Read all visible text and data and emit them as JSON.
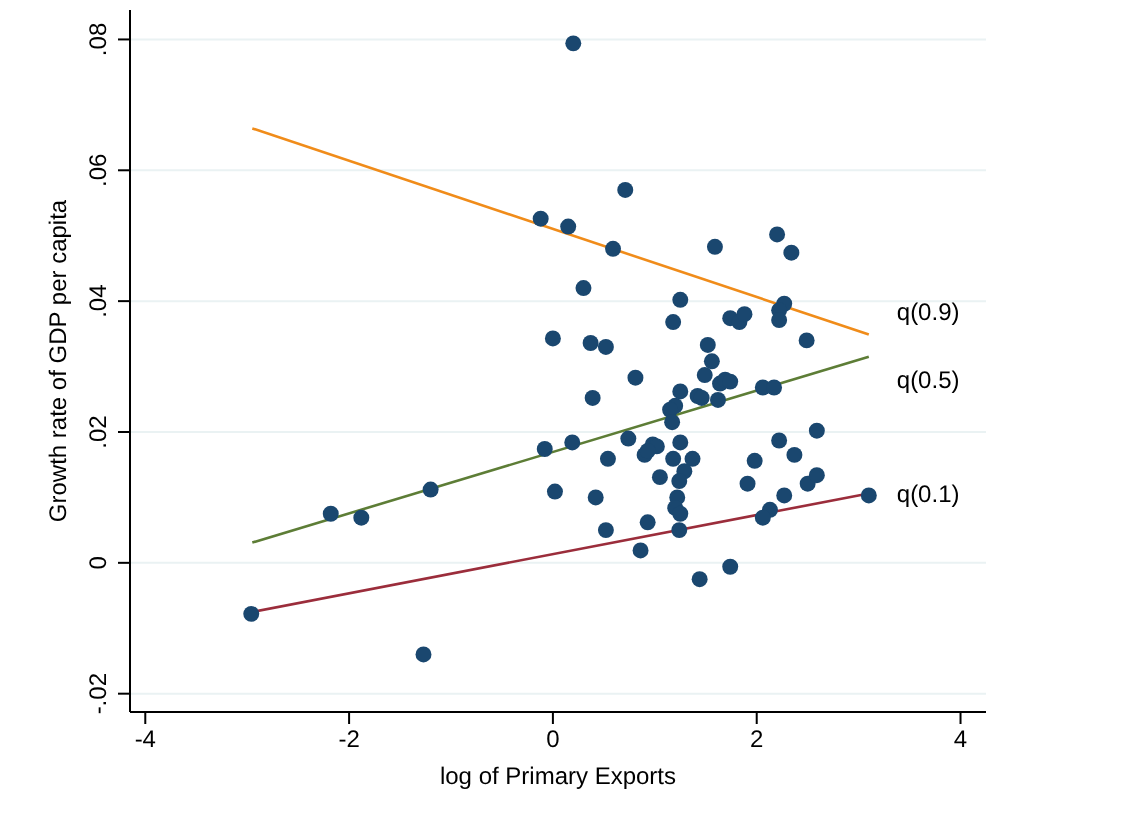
{
  "chart_data": {
    "type": "scatter",
    "xlabel": "log of Primary Exports",
    "ylabel": "Growth rate of GDP per capita",
    "xlim": [
      -4.15,
      4.25
    ],
    "xticks": [
      -4,
      -2,
      0,
      2,
      4
    ],
    "ylim": [
      -0.0228,
      0.0845
    ],
    "yticks": [
      {
        "value": -0.02,
        "label": "-.02"
      },
      {
        "value": 0,
        "label": "0"
      },
      {
        "value": 0.02,
        "label": ".02"
      },
      {
        "value": 0.04,
        "label": ".04"
      },
      {
        "value": 0.06,
        "label": ".06"
      },
      {
        "value": 0.08,
        "label": ".08"
      }
    ],
    "grid": "y",
    "marker": "circle",
    "series": [
      {
        "color": "#1a476f",
        "x": [
          0.2,
          -0.12,
          0.15,
          0.71,
          0.59,
          0.3,
          1.59,
          2.2,
          2.34,
          1.25,
          0.0,
          0.37,
          0.52,
          1.18,
          1.74,
          1.83,
          1.88,
          1.52,
          1.56,
          1.49,
          1.64,
          1.69,
          1.74,
          2.27,
          2.22,
          2.22,
          2.49,
          0.81,
          0.39,
          1.25,
          1.42,
          1.46,
          1.62,
          2.06,
          2.17,
          1.2,
          1.15,
          1.17,
          -0.08,
          0.19,
          0.74,
          0.98,
          1.02,
          0.9,
          0.93,
          1.25,
          1.18,
          1.37,
          0.54,
          2.22,
          2.59,
          2.37,
          1.98,
          1.29,
          1.24,
          1.05,
          0.02,
          0.42,
          1.91,
          2.5,
          2.59,
          2.27,
          3.1,
          1.22,
          1.2,
          1.25,
          1.24,
          0.93,
          2.13,
          2.06,
          0.52,
          0.86,
          1.74,
          1.44,
          -2.18,
          -1.88,
          -1.2,
          -2.96,
          -1.27
        ],
        "values": [
          0.0794,
          0.0526,
          0.0514,
          0.057,
          0.048,
          0.042,
          0.0483,
          0.0502,
          0.0474,
          0.0402,
          0.0343,
          0.0336,
          0.033,
          0.0368,
          0.0374,
          0.0368,
          0.038,
          0.0333,
          0.0308,
          0.0287,
          0.0274,
          0.028,
          0.0277,
          0.0396,
          0.0386,
          0.0371,
          0.034,
          0.0283,
          0.0252,
          0.0262,
          0.0255,
          0.0252,
          0.0249,
          0.0268,
          0.0268,
          0.024,
          0.0234,
          0.0215,
          0.0174,
          0.0184,
          0.019,
          0.0181,
          0.0178,
          0.0165,
          0.0171,
          0.0184,
          0.0159,
          0.0159,
          0.0159,
          0.0187,
          0.0202,
          0.0165,
          0.0156,
          0.014,
          0.0125,
          0.0131,
          0.0109,
          0.01,
          0.0121,
          0.0121,
          0.0134,
          0.0103,
          0.0103,
          0.01,
          0.0084,
          0.0075,
          0.005,
          0.0062,
          0.0081,
          0.0069,
          0.005,
          0.0019,
          -0.0006,
          -0.0025,
          0.0075,
          0.0069,
          0.0112,
          -0.0078,
          -0.014
        ]
      },
      {
        "type": "line",
        "name": "q(0.9)",
        "color": "#f08c1a",
        "marker": "none",
        "x": [
          -2.95,
          3.1
        ],
        "values": [
          0.0664,
          0.0349
        ]
      },
      {
        "type": "line",
        "name": "q(0.5)",
        "color": "#5d7d36",
        "marker": "none",
        "x": [
          -2.95,
          3.1
        ],
        "values": [
          0.0031,
          0.0315
        ]
      },
      {
        "type": "line",
        "name": "q(0.1)",
        "color": "#9b2d3b",
        "marker": "none",
        "x": [
          -2.95,
          3.1
        ],
        "values": [
          -0.0075,
          0.0106
        ]
      }
    ]
  }
}
